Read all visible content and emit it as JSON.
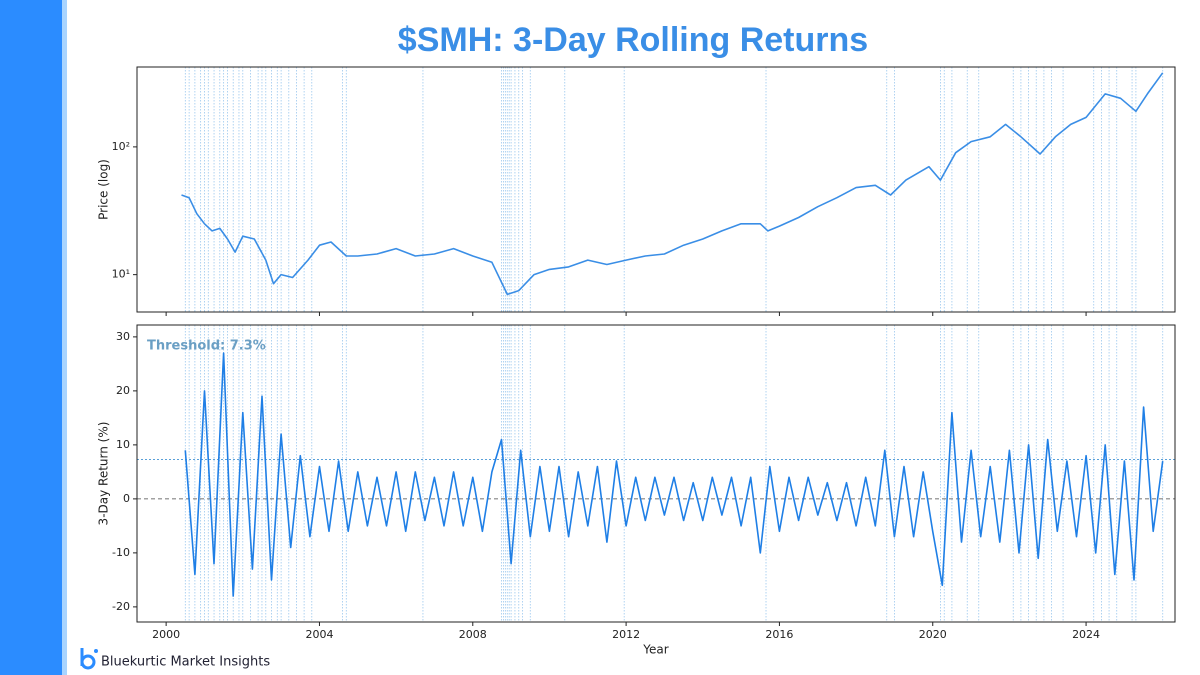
{
  "title": "$SMH: 3-Day Rolling Returns",
  "brand": "Bluekurtic Market Insights",
  "event_dates": [
    2000.5,
    2000.6,
    2000.75,
    2000.9,
    2001.0,
    2001.1,
    2001.25,
    2001.4,
    2001.5,
    2001.6,
    2001.75,
    2001.9,
    2002.0,
    2002.2,
    2002.4,
    2002.5,
    2002.6,
    2002.75,
    2002.9,
    2003.0,
    2003.2,
    2003.4,
    2003.6,
    2003.8,
    2004.6,
    2004.7,
    2006.7,
    2008.75,
    2008.8,
    2008.85,
    2008.9,
    2008.95,
    2009.0,
    2009.1,
    2009.2,
    2009.3,
    2009.5,
    2010.4,
    2011.95,
    2015.65,
    2018.8,
    2019.0,
    2020.2,
    2020.3,
    2020.5,
    2020.9,
    2021.2,
    2022.1,
    2022.3,
    2022.5,
    2022.7,
    2022.9,
    2023.1,
    2023.4,
    2024.2,
    2024.4,
    2024.6,
    2024.8,
    2025.2,
    2025.3,
    2026.0
  ],
  "chart_data": [
    {
      "type": "line",
      "ylabel": "Price (log)",
      "log_y": true,
      "color": "#3a8ee6",
      "xlim": [
        1999.24,
        2026.32
      ],
      "xticks": [
        2000,
        2004,
        2008,
        2012,
        2016,
        2020,
        2024
      ],
      "ylim": [
        5.1,
        422
      ],
      "yticks": [
        {
          "value": 10,
          "label": "10¹"
        },
        {
          "value": 100,
          "label": "10²"
        }
      ],
      "x": [
        2000.4,
        2000.6,
        2000.8,
        2001.0,
        2001.2,
        2001.4,
        2001.6,
        2001.8,
        2002.0,
        2002.3,
        2002.6,
        2002.8,
        2003.0,
        2003.3,
        2003.7,
        2004.0,
        2004.3,
        2004.7,
        2005.0,
        2005.5,
        2006.0,
        2006.5,
        2007.0,
        2007.5,
        2008.0,
        2008.5,
        2008.9,
        2009.2,
        2009.6,
        2010.0,
        2010.5,
        2011.0,
        2011.5,
        2012.0,
        2012.5,
        2013.0,
        2013.5,
        2014.0,
        2014.5,
        2015.0,
        2015.5,
        2015.7,
        2016.0,
        2016.5,
        2017.0,
        2017.5,
        2018.0,
        2018.5,
        2018.9,
        2019.3,
        2019.9,
        2020.2,
        2020.6,
        2021.0,
        2021.5,
        2021.9,
        2022.3,
        2022.8,
        2023.2,
        2023.6,
        2024.0,
        2024.5,
        2024.9,
        2025.3,
        2025.6,
        2026.0
      ],
      "values": [
        42,
        40,
        30,
        25,
        22,
        23,
        19,
        15,
        20,
        19,
        13,
        8.5,
        10,
        9.5,
        13,
        17,
        18,
        14,
        14,
        14.5,
        16,
        14,
        14.5,
        16,
        14,
        12.5,
        7,
        7.5,
        10,
        11,
        11.5,
        13,
        12,
        13,
        14,
        14.5,
        17,
        19,
        22,
        25,
        25,
        22,
        24,
        28,
        34,
        40,
        48,
        50,
        42,
        55,
        70,
        55,
        90,
        110,
        120,
        150,
        120,
        88,
        120,
        150,
        170,
        260,
        240,
        190,
        260,
        380
      ]
    },
    {
      "type": "line",
      "ylabel": "3-Day Return (%)",
      "xlabel": "Year",
      "color": "#1f7fe6",
      "xlim": [
        1999.24,
        2026.32
      ],
      "xticks": [
        2000,
        2004,
        2008,
        2012,
        2016,
        2020,
        2024
      ],
      "ylim": [
        -22.8,
        32.2
      ],
      "yticks": [
        -20,
        -10,
        0,
        10,
        20,
        30
      ],
      "threshold": 7.3,
      "annotation": "Threshold: 7.3%",
      "x": [
        2000.5,
        2000.75,
        2001,
        2001.25,
        2001.5,
        2001.75,
        2002,
        2002.25,
        2002.5,
        2002.75,
        2003,
        2003.25,
        2003.5,
        2003.75,
        2004,
        2004.25,
        2004.5,
        2004.75,
        2005,
        2005.25,
        2005.5,
        2005.75,
        2006,
        2006.25,
        2006.5,
        2006.75,
        2007,
        2007.25,
        2007.5,
        2007.75,
        2008,
        2008.25,
        2008.5,
        2008.75,
        2009,
        2009.25,
        2009.5,
        2009.75,
        2010,
        2010.25,
        2010.5,
        2010.75,
        2011,
        2011.25,
        2011.5,
        2011.75,
        2012,
        2012.25,
        2012.5,
        2012.75,
        2013,
        2013.25,
        2013.5,
        2013.75,
        2014,
        2014.25,
        2014.5,
        2014.75,
        2015,
        2015.25,
        2015.5,
        2015.75,
        2016,
        2016.25,
        2016.5,
        2016.75,
        2017,
        2017.25,
        2017.5,
        2017.75,
        2018,
        2018.25,
        2018.5,
        2018.75,
        2019,
        2019.25,
        2019.5,
        2019.75,
        2020,
        2020.25,
        2020.5,
        2020.75,
        2021,
        2021.25,
        2021.5,
        2021.75,
        2022,
        2022.25,
        2022.5,
        2022.75,
        2023,
        2023.25,
        2023.5,
        2023.75,
        2024,
        2024.25,
        2024.5,
        2024.75,
        2025,
        2025.25,
        2025.5,
        2025.75,
        2026
      ],
      "values": [
        9,
        -14,
        20,
        -12,
        27,
        -18,
        16,
        -13,
        19,
        -15,
        12,
        -9,
        8,
        -7,
        6,
        -6,
        7,
        -6,
        5,
        -5,
        4,
        -5,
        5,
        -6,
        5,
        -4,
        4,
        -5,
        5,
        -5,
        4,
        -6,
        5,
        11,
        -12,
        9,
        -7,
        6,
        -6,
        6,
        -7,
        5,
        -5,
        6,
        -8,
        7,
        -5,
        4,
        -4,
        4,
        -3,
        4,
        -4,
        3,
        -4,
        4,
        -3,
        4,
        -5,
        4,
        -10,
        6,
        -6,
        4,
        -4,
        4,
        -3,
        3,
        -4,
        3,
        -5,
        4,
        -5,
        9,
        -7,
        6,
        -7,
        5,
        -6,
        -16,
        16,
        -8,
        9,
        -7,
        6,
        -8,
        9,
        -10,
        10,
        -11,
        11,
        -6,
        7,
        -7,
        8,
        -10,
        10,
        -14,
        7,
        -15,
        17,
        -6,
        7
      ]
    }
  ]
}
